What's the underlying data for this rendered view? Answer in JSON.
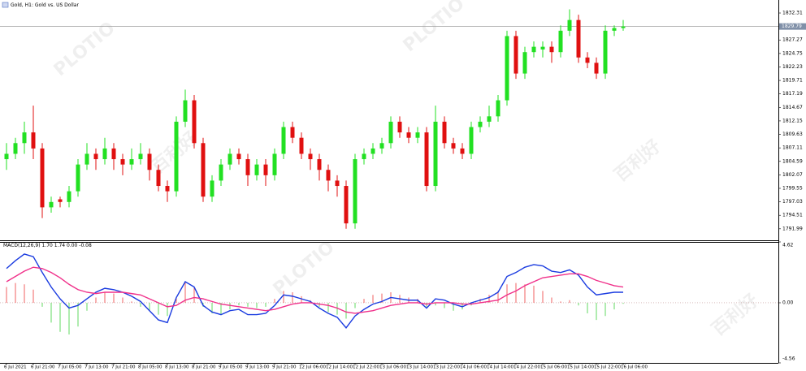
{
  "chart_data": [
    {
      "type": "candlestick",
      "title": "Gold, H1: Gold vs. US Dollar",
      "categories": [
        "6 Jul 2021",
        null,
        null,
        "6 Jul 21:00",
        null,
        null,
        "7 Jul 05:00",
        null,
        null,
        "7 Jul 13:00",
        null,
        null,
        "7 Jul 21:00",
        null,
        null,
        "8 Jul 05:00",
        null,
        null,
        "8 Jul 13:00",
        null,
        null,
        "8 Jul 21:00",
        null,
        null,
        "9 Jul 05:00",
        null,
        null,
        "9 Jul 13:00",
        null,
        null,
        "9 Jul 21:00",
        null,
        null,
        "12 Jul 06:00",
        null,
        null,
        "12 Jul 14:00",
        null,
        null,
        "12 Jul 22:00",
        null,
        null,
        "13 Jul 06:00",
        null,
        null,
        "13 Jul 14:00",
        null,
        null,
        "13 Jul 22:00",
        null,
        null,
        "14 Jul 06:00",
        null,
        null,
        "14 Jul 14:00",
        null,
        null,
        "14 Jul 22:00",
        null,
        null,
        "15 Jul 06:00",
        null,
        null,
        "15 Jul 14:00",
        null,
        null,
        "15 Jul 22:00",
        null,
        null,
        "16 Jul 06:00"
      ],
      "ohlc": [
        [
          1805,
          1808,
          1803,
          1806
        ],
        [
          1806,
          1809,
          1805,
          1808
        ],
        [
          1808,
          1812,
          1806,
          1810
        ],
        [
          1810,
          1815,
          1805,
          1807
        ],
        [
          1807,
          1808,
          1794,
          1796
        ],
        [
          1796,
          1798,
          1795,
          1797
        ],
        [
          1797.5,
          1798,
          1796,
          1797
        ],
        [
          1797,
          1800,
          1796,
          1799
        ],
        [
          1799,
          1805,
          1798,
          1804
        ],
        [
          1804,
          1808,
          1803,
          1806
        ],
        [
          1806,
          1807,
          1803,
          1805
        ],
        [
          1805,
          1809,
          1804,
          1807
        ],
        [
          1807,
          1808,
          1803,
          1805
        ],
        [
          1805,
          1806,
          1802,
          1804
        ],
        [
          1804,
          1807,
          1803,
          1805
        ],
        [
          1805,
          1808,
          1804,
          1806
        ],
        [
          1806,
          1807,
          1801,
          1803
        ],
        [
          1803,
          1804,
          1799,
          1800
        ],
        [
          1800,
          1801,
          1797,
          1799
        ],
        [
          1799,
          1813,
          1798,
          1812
        ],
        [
          1812,
          1818,
          1811,
          1816
        ],
        [
          1816,
          1817,
          1807,
          1808
        ],
        [
          1808,
          1809,
          1797,
          1798
        ],
        [
          1798,
          1802,
          1797,
          1801
        ],
        [
          1801,
          1805,
          1800,
          1804
        ],
        [
          1804,
          1807,
          1803,
          1806
        ],
        [
          1806,
          1807,
          1804,
          1805
        ],
        [
          1805,
          1806,
          1800,
          1802
        ],
        [
          1802,
          1805,
          1801,
          1804
        ],
        [
          1804,
          1805,
          1800,
          1802
        ],
        [
          1802,
          1807,
          1801,
          1806
        ],
        [
          1806,
          1812,
          1805,
          1811
        ],
        [
          1811,
          1812,
          1808,
          1809
        ],
        [
          1809,
          1810,
          1805,
          1806
        ],
        [
          1806,
          1807,
          1803,
          1805
        ],
        [
          1805,
          1806,
          1801,
          1803
        ],
        [
          1803,
          1804,
          1799,
          1801
        ],
        [
          1801,
          1802,
          1798,
          1800
        ],
        [
          1800,
          1801,
          1792,
          1793
        ],
        [
          1793,
          1806,
          1792,
          1805
        ],
        [
          1805,
          1807,
          1804,
          1806
        ],
        [
          1806,
          1808,
          1805,
          1807
        ],
        [
          1807,
          1809,
          1806,
          1808
        ],
        [
          1808,
          1813,
          1807,
          1812
        ],
        [
          1812,
          1813,
          1809,
          1810
        ],
        [
          1810,
          1811,
          1808,
          1809
        ],
        [
          1809,
          1811,
          1808,
          1810
        ],
        [
          1810,
          1811,
          1799,
          1800
        ],
        [
          1800,
          1815,
          1799,
          1812
        ],
        [
          1812,
          1813,
          1807,
          1808
        ],
        [
          1808,
          1809,
          1806,
          1807
        ],
        [
          1807,
          1808,
          1805,
          1806
        ],
        [
          1806,
          1812,
          1805,
          1811
        ],
        [
          1811,
          1813,
          1810,
          1812
        ],
        [
          1812,
          1815,
          1811,
          1813
        ],
        [
          1813,
          1817,
          1812,
          1816
        ],
        [
          1816,
          1829,
          1815,
          1828
        ],
        [
          1828,
          1829,
          1820,
          1821
        ],
        [
          1821,
          1826,
          1820,
          1825
        ],
        [
          1825,
          1827,
          1824,
          1826
        ],
        [
          1825.5,
          1827,
          1824,
          1826
        ],
        [
          1826,
          1827,
          1823,
          1825
        ],
        [
          1825,
          1830,
          1824,
          1829
        ],
        [
          1829,
          1833,
          1828,
          1831
        ],
        [
          1831,
          1832,
          1823,
          1824
        ],
        [
          1824,
          1825,
          1822,
          1823
        ],
        [
          1823,
          1824,
          1820,
          1821
        ],
        [
          1821,
          1830,
          1820,
          1829
        ],
        [
          1829,
          1830,
          1828,
          1829.5
        ],
        [
          1829.5,
          1831,
          1829,
          1829.79
        ]
      ],
      "up_color": "#22e022",
      "down_color": "#e01010",
      "last_price": 1829.79,
      "ylim": [
        1789.84,
        1834.74
      ],
      "yticks": [
        1832.31,
        1827.27,
        1824.75,
        1822.23,
        1819.71,
        1817.19,
        1814.67,
        1812.15,
        1809.63,
        1807.11,
        1804.59,
        1802.07,
        1799.55,
        1797.03,
        1794.51,
        1791.99
      ]
    },
    {
      "type": "macd",
      "title": "MACD(12,26,9) 1.70 1.74 0.00 -0.08",
      "histogram": {
        "up_color": "#f06060",
        "down_color": "#60d860",
        "values": [
          1.2,
          1.5,
          1.4,
          1.0,
          -0.3,
          -1.5,
          -2.2,
          -2.4,
          -1.8,
          -0.6,
          0.4,
          0.8,
          0.7,
          0.4,
          0.1,
          -0.3,
          -0.6,
          -0.9,
          -1.0,
          0.4,
          1.6,
          1.2,
          -0.3,
          -0.8,
          -0.9,
          -0.5,
          -0.2,
          -0.3,
          -0.4,
          -0.3,
          0.3,
          0.9,
          0.8,
          0.5,
          0.2,
          -0.3,
          -0.7,
          -0.9,
          -1.2,
          -0.4,
          0.3,
          0.6,
          0.7,
          0.8,
          0.6,
          0.4,
          0.3,
          -0.3,
          -0.2,
          -0.4,
          -0.6,
          -0.5,
          -0.2,
          0.3,
          0.6,
          0.9,
          1.4,
          1.5,
          1.4,
          1.3,
          0.9,
          0.4,
          0.1,
          0.2,
          -0.2,
          -0.8,
          -1.3,
          -1.0,
          -0.5,
          -0.08
        ]
      },
      "macd_line": {
        "color": "#1a3be0",
        "values": [
          2.6,
          3.2,
          3.7,
          3.5,
          2.3,
          1.2,
          0.3,
          -0.4,
          -0.2,
          0.3,
          0.8,
          1.1,
          1.0,
          0.8,
          0.5,
          0.1,
          -0.6,
          -1.3,
          -1.5,
          0.4,
          1.6,
          1.2,
          -0.2,
          -0.7,
          -0.9,
          -0.6,
          -0.5,
          -0.9,
          -0.9,
          -0.8,
          -0.2,
          0.6,
          0.5,
          0.3,
          0.1,
          -0.4,
          -0.8,
          -1.1,
          -1.9,
          -1.0,
          -0.5,
          -0.1,
          0.1,
          0.4,
          0.3,
          0.2,
          0.2,
          -0.4,
          0.3,
          0.2,
          -0.1,
          -0.3,
          0.0,
          0.2,
          0.4,
          0.8,
          2.0,
          2.3,
          2.7,
          2.9,
          2.8,
          2.4,
          2.3,
          2.5,
          2.1,
          1.2,
          0.6,
          0.7,
          0.8,
          0.8
        ]
      },
      "signal_line": {
        "color": "#f0308a",
        "values": [
          1.6,
          2.0,
          2.4,
          2.7,
          2.6,
          2.3,
          1.9,
          1.4,
          1.0,
          0.8,
          0.7,
          0.8,
          0.8,
          0.8,
          0.7,
          0.6,
          0.3,
          0.0,
          -0.3,
          -0.2,
          0.2,
          0.4,
          0.3,
          0.1,
          -0.1,
          -0.2,
          -0.3,
          -0.4,
          -0.5,
          -0.6,
          -0.5,
          -0.3,
          -0.1,
          0.0,
          0.0,
          -0.1,
          -0.2,
          -0.4,
          -0.7,
          -0.8,
          -0.7,
          -0.6,
          -0.4,
          -0.2,
          -0.1,
          0.0,
          0.0,
          -0.1,
          0.0,
          0.0,
          0.0,
          -0.1,
          -0.1,
          0.0,
          0.1,
          0.2,
          0.6,
          0.9,
          1.3,
          1.6,
          1.9,
          2.0,
          2.1,
          2.2,
          2.2,
          2.0,
          1.7,
          1.5,
          1.3,
          1.2
        ]
      },
      "ylim": [
        -4.56,
        4.62
      ],
      "yticks": [
        4.62,
        {
          "value": 0,
          "label": "0.00"
        },
        -4.56
      ]
    }
  ],
  "watermark": {
    "brand": "PLOTIO",
    "name": "百利好"
  }
}
